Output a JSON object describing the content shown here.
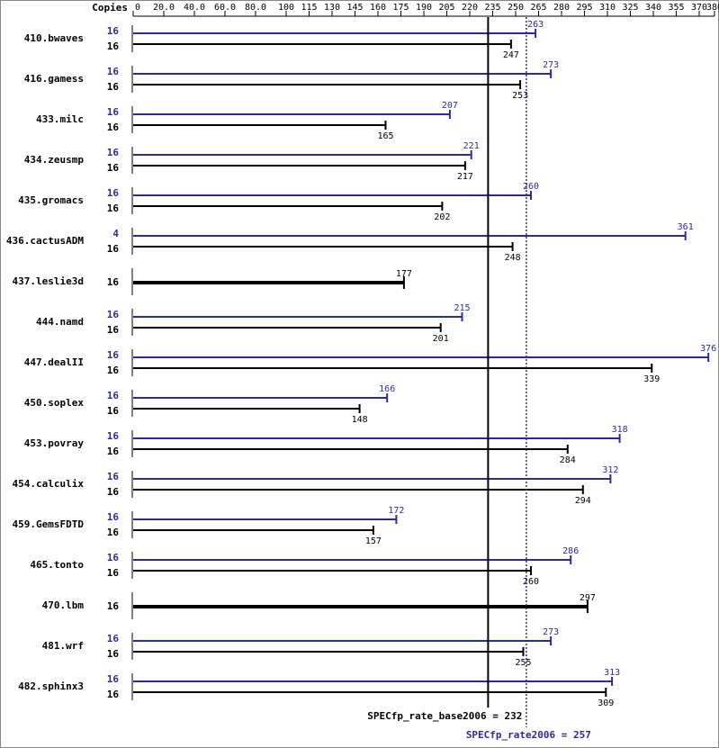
{
  "chart_data": {
    "type": "hbar",
    "copies_label": "Copies",
    "categories": [
      "410.bwaves",
      "416.gamess",
      "433.milc",
      "434.zeusmp",
      "435.gromacs",
      "436.cactusADM",
      "437.leslie3d",
      "444.namd",
      "447.dealII",
      "450.soplex",
      "453.povray",
      "454.calculix",
      "459.GemsFDTD",
      "465.tonto",
      "470.lbm",
      "481.wrf",
      "482.sphinx3"
    ],
    "series": [
      {
        "color": "#2b2b9e",
        "copies": [
          16,
          16,
          16,
          16,
          16,
          4,
          null,
          16,
          16,
          16,
          16,
          16,
          16,
          16,
          null,
          16,
          16
        ],
        "values": [
          263,
          273,
          207,
          221,
          260,
          361,
          null,
          215,
          376,
          166,
          318,
          312,
          172,
          286,
          null,
          273,
          313
        ]
      },
      {
        "color": "#000000",
        "copies": [
          16,
          16,
          16,
          16,
          16,
          16,
          16,
          16,
          16,
          16,
          16,
          16,
          16,
          16,
          16,
          16,
          16
        ],
        "values": [
          247,
          253,
          165,
          217,
          202,
          248,
          177,
          201,
          339,
          148,
          284,
          294,
          157,
          260,
          297,
          255,
          309
        ]
      }
    ],
    "xlim": [
      0,
      380
    ],
    "xticks": [
      0,
      {
        "value": 20,
        "label": "20.0"
      },
      {
        "value": 40,
        "label": "40.0"
      },
      {
        "value": 60,
        "label": "60.0"
      },
      {
        "value": 80,
        "label": "80.0"
      },
      100,
      115,
      130,
      145,
      160,
      175,
      190,
      205,
      220,
      235,
      250,
      265,
      280,
      295,
      310,
      325,
      340,
      355,
      370,
      380
    ],
    "reference_lines": [
      {
        "value": 232,
        "label": "SPECfp_rate_base2006 = 232",
        "color": "#000000",
        "dashed": false
      },
      {
        "value": 257,
        "label": "SPECfp_rate2006 = 257",
        "color": "#2b2b9e",
        "dashed": true
      }
    ]
  }
}
